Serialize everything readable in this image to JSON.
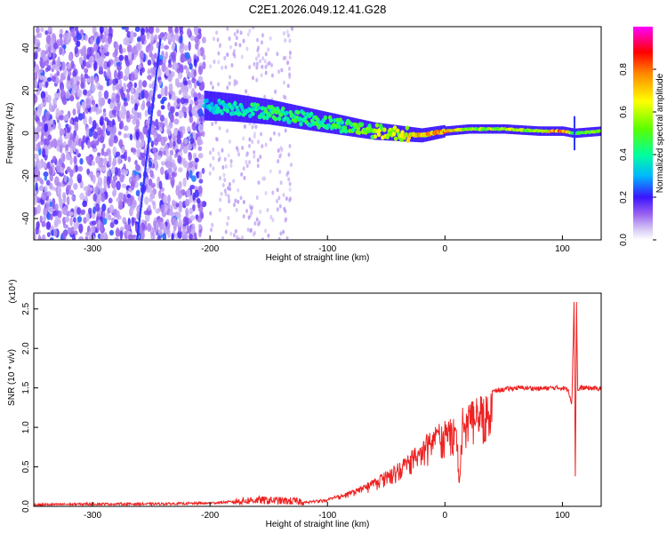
{
  "figure": {
    "title": "C2E1.2026.049.12.41.G28"
  },
  "chart_data": [
    {
      "type": "heatmap",
      "title": "C2E1.2026.049.12.41.G28",
      "xlabel": "Height of straight line (km)",
      "ylabel": "Frequency (Hz)",
      "xlim": [
        -350,
        133
      ],
      "ylim": [
        -50,
        50
      ],
      "xticks": [
        -300,
        -200,
        -100,
        0,
        100
      ],
      "yticks": [
        -40,
        -20,
        0,
        20,
        40
      ],
      "colorbar": {
        "label": "Normalized spectral amplitude",
        "range": [
          0.0,
          1.0
        ],
        "ticks": [
          0.0,
          0.2,
          0.4,
          0.6,
          0.8
        ],
        "colors": [
          "#ffffff",
          "#b9a4f0",
          "#7b2cf0",
          "#1a10ff",
          "#00e0ff",
          "#00ff90",
          "#70ff00",
          "#ffff00",
          "#ff8a00",
          "#ff0000",
          "#ff00ff"
        ]
      },
      "ridge": {
        "x": [
          -205,
          -180,
          -150,
          -120,
          -100,
          -80,
          -60,
          -40,
          -20,
          0,
          20,
          50,
          80,
          100,
          110,
          133
        ],
        "freq": [
          13,
          12,
          10,
          7,
          5,
          3,
          1,
          0,
          -1,
          1,
          2,
          2,
          1,
          1,
          0,
          1
        ],
        "amplitude": [
          0.35,
          0.4,
          0.45,
          0.45,
          0.45,
          0.5,
          0.6,
          0.65,
          0.75,
          0.8,
          0.6,
          0.6,
          0.6,
          0.9,
          0.5,
          0.6
        ]
      }
    },
    {
      "type": "line",
      "xlabel": "Height of straight line (km)",
      "ylabel": "SNR (10 * v/v)",
      "y_multiplier": "(x10⁴)",
      "xlim": [
        -350,
        133
      ],
      "ylim": [
        0.0,
        2.7
      ],
      "xticks": [
        -300,
        -200,
        -100,
        0,
        100
      ],
      "yticks": [
        0.0,
        0.5,
        1.0,
        1.5,
        2.0,
        2.5
      ],
      "color": "#ee2222",
      "series": [
        {
          "x": [
            -350,
            -300,
            -250,
            -200,
            -180,
            -160,
            -140,
            -120,
            -100,
            -90,
            -80,
            -70,
            -60,
            -50,
            -40,
            -30,
            -20,
            -10,
            0,
            10,
            12,
            15,
            20,
            30,
            40,
            50,
            60,
            70,
            80,
            90,
            100,
            105,
            108,
            110,
            111,
            112,
            113,
            115,
            120,
            133
          ],
          "values": [
            0.02,
            0.03,
            0.03,
            0.04,
            0.06,
            0.08,
            0.07,
            0.06,
            0.1,
            0.15,
            0.2,
            0.27,
            0.35,
            0.45,
            0.55,
            0.7,
            0.85,
            1.0,
            1.1,
            1.2,
            0.3,
            1.25,
            1.32,
            1.4,
            1.45,
            1.48,
            1.5,
            1.5,
            1.49,
            1.5,
            1.5,
            1.48,
            1.3,
            2.65,
            0.25,
            2.6,
            1.45,
            1.5,
            1.5,
            1.49
          ]
        }
      ]
    }
  ]
}
